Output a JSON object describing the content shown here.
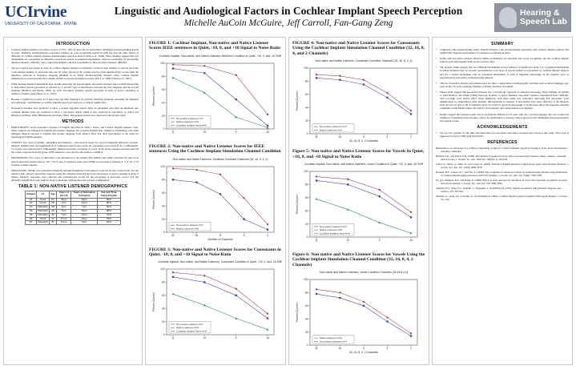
{
  "header": {
    "logo_left_main": "UCIrvine",
    "logo_left_sub": "UNIVERSITY OF CALIFORNIA · IRVINE",
    "title": "Linguistic and Audiological Factors in Cochlear Implant Speech Perception",
    "authors": "Michelle AuCoin McGuire, Jeff Carroll, Fan-Gang Zeng",
    "logo_right": "Hearing & Speech Lab"
  },
  "col1": {
    "intro_title": "INTRODUCTION",
    "intro": [
      "Cochlear implant listeners can achieve scores of 70% - 80% in quiet but are particularly challenged in understanding speech in noise. Similarly, normal-hearing, non-native listeners do well recognizing speech in quiet but face the same degree of difficulty as cochlear implant listeners understanding speech in noise (Gubbi et al., 2004). These findings suggest that two mechanisms are responsible for imperfect speech perception: A peripheral mechanism, which is responsible for the hearing impaired listeners' difficulty, and a central mechanism, which is responsible for the non-native listeners' difficulty.",
      "The poor speech perception in noise in cochlear implant listeners is primarily a result of their inability to encode pitch due to the limited number of electrodes that can be safely placed in the cochlea and the pitch mismatch that occurs from the imperfect electrode to frequency mapping (Baskent et al. 2004). Normal-hearing listeners using cochlear implant simulations (vocoded speech) show similar deficits in speech recognition in noise (Fu et al. 1998; Friesen et al. 2001).",
      "While hearing impaired individuals have trouble retrieving the speech signal, non-native listeners have trouble interpreting it. Non-native speech perception is affected by a specific type of interference between the first language and the second language (Bradlow and Pisoni, 1999). As such, non-native speakers' speech perception in noise is poorer regardless of stimuli or listener group (Mayo et al., 1997).",
      "Because a significant portion of CI users may use their languages in everyday listening situations, assessing the linguistic and audiologic contributions to cochlear implant speech perception is of clinical significance.",
      "Non-native listeners were predicted to show a weaker degraded speech effect on phonemes over their un-simulated use. Cochlear implant users are predicted to show a perceptual deficit which is also observed in non-native vs. native test (Bradlow and Bent, 2002; Bhatnagerna and Zeng, 2005). This general pattern was observed in the present study."
    ],
    "methods_title": "METHODS",
    "methods": [
      "PARTICIPANTS: Seven non-native speakers of English described in Table 1 below, and 6 native English speakers. Non-native subjects are bilingual in English and another language but acquired English after childhood. Preliminary data from bilingual subjects exposed to English and another language from infancy show that their performance is the same for monolingual English speakers.",
      "STIMULI: Two types of stimuli - phonemes and sentences - were used to assess two types of linguistic functions: acoustic-phonetic identification and segmentation of continuous speech into words. 20 consonants were tested in aCa combinations. 12 vowels were tested in hVd combinations. Subjects heard the consonant or vowel on the given response and then selected the correct response from the group. IEEE sentences were used for the sentence condition.",
      "DISTORTIONS: Two types of distortions were introduced to the stimuli. The stimuli were either presented in quiet or in speech-spectrum-shaped noise at +20, +10, 0, and -10 signal-to-noise ratio (SNR) or processed to simulate 2, 4, 8, 16, or 32 channel cochlear implant.",
      "PROCEDURE: Stimuli were presented binaurally through headphones with subjects seated in an IAC sound booth. For the sentence task, subjects typed their response using the computer keyboard and were encouraged to ask for spelling or guess if unsure. Subjects' responses were collected and automatically scored for the percentage of keywords correct. For the phoneme identification task, subjects heard a phoneme configuration and selected configuration."
    ],
    "table_title": "TABLE 1: NON-NATIVE LISTENER DEMOGRAPHICS",
    "table_headers": [
      "Subject",
      "L1",
      "Age",
      "Years in the US",
      "Years of Education in English",
      "Current Time Using English"
    ],
    "table_rows": [
      [
        "S1",
        "Farsi",
        "61",
        "35yrs",
        "18yrs",
        "50%"
      ],
      [
        "S2",
        "Czech",
        "28",
        "7yrs",
        "12yrs",
        "80%"
      ],
      [
        "S3",
        "Mandarin",
        "28",
        "4yrs",
        "7yrs",
        "50%"
      ],
      [
        "S4",
        "Mandarin",
        "30",
        "5yrs",
        "10yrs",
        "80%"
      ],
      [
        "S5",
        "Mandarin",
        "22",
        "7yrs",
        "12yrs",
        "70%"
      ],
      [
        "S6",
        "Hindi",
        "37",
        "17yrs",
        "12yrs",
        "70%"
      ],
      [
        "S7",
        "Mandarin",
        "31",
        "10yrs",
        "6yrs",
        "60%"
      ]
    ]
  },
  "col2": {
    "fig1_title": "FIGURE 1: Cochlear Implant, Non-native and Native Listener Scores IEEE sentences in Quiet, -10, 0, and +10 Signal to Noise Ratio",
    "fig2_title": "FIGURE 2: Non-native and Native Listener Scores for IEEE sentences Using the Cochlear Implant Simulation Channel Condition",
    "fig3_title": "FIGURE 3: Non-native and Native Listener Scores for Consonants in Quiet, -10, 0, and +10 Signal to Noise Ratio"
  },
  "col3": {
    "fig4_title": "FIGURE 4: Non-native and Native Listener Scores for Consonants Using the Cochlear Implant Simulation Channel Condition (32, 16, 8, 4, and 2 Channels)",
    "fig5_title": "Figure 5: Non-native and Native Listener Scores for Vowels In Quiet, +10, 0, and -10 Signal to Noise Ratio",
    "fig6_title": "Figure 6: Non-native and Native Listener Scores for Vowels Using the Cochlear Implant Simulation Channel Condition (32, 16, 8, 4, 2 Channels)"
  },
  "col4": {
    "summary_title": "SUMMARY",
    "summary": [
      "Compared with normal-hearing native English listeners, both normal-hearing non-native and cochlear implant subjects had significantly degraded performance for sentence recognition in noise.",
      "Native and non-native subjects showed similar performance in consonant and vowel recognition, but the cochlear implant subjects performed significantly worse on these tasks.",
      "The present results suggest that two different mechanisms lead to sentence recognition in noise: (1) a peripheral mechanism in which distorted input or acoustic representation of all types of speech stimuli as represented by cochlear implant subjects and (2) a central mechanism with no peripheral impairment, as lack of linguistic knowledge on the sentence level as experienced by non-native, normal-hearing subjects.",
      "This for 'non-native listener performance does not show a dependence on demographic variables such as native language, age, years in the US, years speaking English, or formal education in English.",
      "These results suggest that non-native listeners use a \"bottom-up\" approach to sentence processing. These findings are similar to what Bradlow and Pisoni (1999) observed: Relative to native listeners, non-native listeners experienced more difficulty with low-high word lexical effect when familiarity with these items was controlled, indicating that non-native word identification is compromised when phonetic differentiation is required. If non-natives have more difficulty at the phonetic level and are not able to fill in segments based on context to previous knowledge, it seems more likely that degraded listening conditions would further impact the task for both phonetic and whole-sentence recognition.",
      "Results suggest that sentence tasks will be particularly difficult for CI users who use a second language that was acquired in adulthood. Expanding such outcomes, allows for audiologists to develop clinical protocols that distinguish between phonemic and sentence tasks."
    ],
    "ack_title": "ACKNOWLEDGEMENTS",
    "ack": "We are very grateful for the time and dedication our non-native and native listeners have given to this study. This work is supported in part by NIH grant DC002267.",
    "refs_title": "REFERENCES",
    "refs": [
      "Bhattacharya, A., and Zeng, F.G. (2005). Companding to improve cochlear implants' speech processing in noise. Poster Presentation, Asilomar, California.",
      "Bradlow A.R., and Pisoni, D.B. (1999). Recognition of spoken words by native and non-native listeners: talker-, listener-, and item-related factors. J. Acoust. Soc. Am. 1999 Nov 106(4 Pt 1): 2074-85.",
      "Cutler, A., Weber, A., Smits, R., and Cooper, N. (2004). Patterns of English phoneme confusions by native and non-native listeners. J. Acoust. Soc. Am. Vol. 116(6): 3668-3678.",
      "Dorman, M.F., Loizou, P.C., and Fitz, K. (1998). The recognition of sentences in noise by normal-hearing listeners using simulations of cochlear-implant signal processors with 6-20 channels. J. Acoust. Soc. Am. Vol. 104(6): 3583-3585.",
      "Fu, Q.J., Shannon, R.V., and Wang, X. (1998). Effects of noise and spectral resolution on vowel and consonant recognition: Acoustic and electric hearing. J. Acoust. Soc. Am. Vol. 104: 3586-3596.",
      "Shannon, R.V., Zeng, F.G., Kamath, V., Wygonski, J., and Ekelid, M. (1995). Speech recognition with primarily temporal cues. Science, 270: 303-304.",
      "Stickney, G., Zeng, F.G., Litovsky, R., and Assmann, P. (2004). Cochlear implant speech recognition with speech maskers. J. Acoust. Soc. Am."
    ]
  },
  "chart_data": [
    {
      "id": "fig1",
      "type": "line",
      "title": "Cochlear Implant, Non-native, and Native Listeners Sentence Condition in Quiet, +10, 0, and -10 SNR",
      "xlabel": "",
      "ylabel": "Percent Correct",
      "categories": [
        "Q",
        "10",
        "0",
        "-10"
      ],
      "ylim": [
        0,
        100
      ],
      "legend": "bottom-left",
      "series": [
        {
          "name": "Non-native Listeners N=7",
          "values": [
            92,
            85,
            45,
            5
          ],
          "color": "#4a4a9a",
          "marker": "square"
        },
        {
          "name": "Native Listeners N=6",
          "values": [
            98,
            96,
            82,
            22
          ],
          "color": "#9a4a4a",
          "marker": "circle"
        },
        {
          "name": "Cochlear Implant Users N=6",
          "values": [
            78,
            55,
            18,
            2
          ],
          "color": "#3a8a5a",
          "marker": "triangle"
        }
      ]
    },
    {
      "id": "fig2",
      "type": "line",
      "title": "Non-native and Native Listeners, Sentence Condition Channels (32, 16, 8, 4, 2)",
      "xlabel": "Number of Channels",
      "ylabel": "Percent Correct",
      "categories": [
        "32",
        "16",
        "8",
        "4",
        "2"
      ],
      "ylim": [
        0,
        100
      ],
      "legend": "bottom-left",
      "series": [
        {
          "name": "Non-native Listeners N=7",
          "values": [
            80,
            76,
            58,
            20,
            4
          ],
          "color": "#4a4a9a",
          "marker": "square"
        },
        {
          "name": "Native Listeners N=6",
          "values": [
            97,
            95,
            88,
            52,
            12
          ],
          "color": "#9a4a4a",
          "marker": "circle"
        }
      ]
    },
    {
      "id": "fig3",
      "type": "line",
      "title": "Cochlear Implant, Non-native, and Native Listeners, Consonant Condition in Quiet, +10, 0, and -10 SNR",
      "xlabel": "",
      "ylabel": "Percent Correct",
      "categories": [
        "Q",
        "10",
        "0",
        "-10"
      ],
      "ylim": [
        0,
        100
      ],
      "legend": "bottom-left",
      "series": [
        {
          "name": "Non-native Listeners N=7",
          "values": [
            88,
            80,
            60,
            25
          ],
          "color": "#4a4a9a",
          "marker": "square"
        },
        {
          "name": "Native Listeners N=6",
          "values": [
            95,
            90,
            70,
            32
          ],
          "color": "#9a4a4a",
          "marker": "circle"
        },
        {
          "name": "Cochlear Implant Users N=6",
          "values": [
            62,
            45,
            25,
            8
          ],
          "color": "#3a8a5a",
          "marker": "triangle"
        }
      ]
    },
    {
      "id": "fig4",
      "type": "line",
      "title": "Non-native and Native Listeners, Consonant Condition Channels (32, 16, 8, 4, 2)",
      "xlabel": "32, 16, 8, 4, 2 Channels",
      "ylabel": "Percent Correct",
      "categories": [
        "32",
        "16",
        "8",
        "4",
        "2"
      ],
      "ylim": [
        0,
        100
      ],
      "legend": "bottom-left",
      "series": [
        {
          "name": "Non-native Listeners N=7",
          "values": [
            85,
            82,
            75,
            55,
            30
          ],
          "color": "#4a4a9a",
          "marker": "square"
        },
        {
          "name": "Native Listeners N=6",
          "values": [
            90,
            88,
            82,
            62,
            35
          ],
          "color": "#9a4a4a",
          "marker": "circle"
        }
      ]
    },
    {
      "id": "fig5",
      "type": "line",
      "title": "Cochlear Implant, Non-native, and Native Listeners, Vowel Condition in Quiet, +10, 0, and -10 SNR",
      "xlabel": "",
      "ylabel": "Percent Correct",
      "categories": [
        "Q",
        "10",
        "0",
        "-10"
      ],
      "ylim": [
        0,
        100
      ],
      "legend": "bottom-left",
      "series": [
        {
          "name": "Non-native Listeners N=7",
          "values": [
            86,
            80,
            62,
            30
          ],
          "color": "#4a4a9a",
          "marker": "square"
        },
        {
          "name": "Native Listeners N=6",
          "values": [
            92,
            88,
            72,
            38
          ],
          "color": "#9a4a4a",
          "marker": "circle"
        },
        {
          "name": "Cochlear Implant Users N=6",
          "values": [
            58,
            42,
            22,
            6
          ],
          "color": "#3a8a5a",
          "marker": "triangle"
        }
      ]
    },
    {
      "id": "fig6",
      "type": "line",
      "title": "Non-native and Native Listeners, Vowel Condition Channels (32,16,8,4,2)",
      "xlabel": "32, 16, 8, 4, 2 Channels",
      "ylabel": "Percent Correct",
      "categories": [
        "32",
        "16",
        "8",
        "4",
        "2"
      ],
      "ylim": [
        0,
        100
      ],
      "legend": "bottom-left",
      "series": [
        {
          "name": "Native Listeners N=6",
          "values": [
            85,
            80,
            66,
            42,
            18
          ],
          "color": "#9a4a4a",
          "marker": "circle"
        },
        {
          "name": "Non-native Listeners N=7",
          "values": [
            78,
            72,
            60,
            36,
            14
          ],
          "color": "#4a4a9a",
          "marker": "square"
        }
      ]
    }
  ]
}
